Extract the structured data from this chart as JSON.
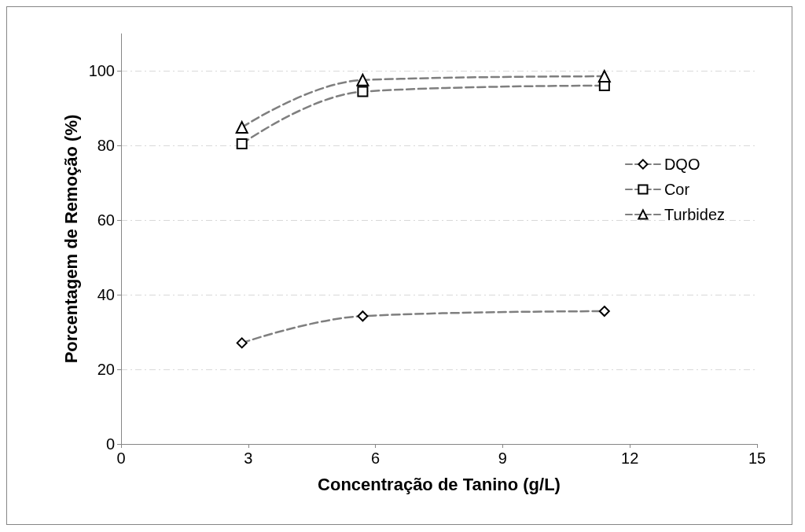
{
  "chart_data": {
    "type": "line",
    "xlabel": "Concentração de Tanino (g/L)",
    "ylabel": "Porcentagem de Remoção (%)",
    "x": [
      2.85,
      5.7,
      11.4
    ],
    "series": [
      {
        "name": "DQO",
        "color": "#7f7f7f",
        "marker": "diamond",
        "values": [
          27.1,
          34.3,
          35.6
        ]
      },
      {
        "name": "Cor",
        "color": "#7f7f7f",
        "marker": "square",
        "values": [
          80.5,
          94.5,
          96.1
        ]
      },
      {
        "name": "Turbidez",
        "color": "#7f7f7f",
        "marker": "triangle",
        "values": [
          84.9,
          97.6,
          98.6
        ]
      }
    ],
    "xlim": [
      0,
      15
    ],
    "xticks": [
      0,
      3,
      6,
      9,
      12,
      15
    ],
    "ylim": [
      0,
      110
    ],
    "yticks": [
      0,
      20,
      40,
      60,
      80,
      100
    ],
    "grid": "y",
    "legend": "right",
    "line_style": "dashed"
  }
}
